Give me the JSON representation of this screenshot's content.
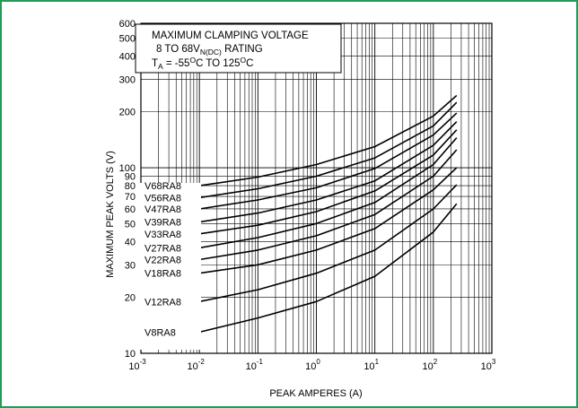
{
  "colors": {
    "frame": "#1f9d57",
    "lines": "#000000"
  },
  "chart_data": {
    "type": "line",
    "xscale": "log",
    "yscale": "log",
    "xlabel": "PEAK AMPERES (A)",
    "ylabel": "MAXIMUM PEAK VOLTS (V)",
    "xlim": [
      0.001,
      1000
    ],
    "ylim": [
      10,
      600
    ],
    "grid": true,
    "annotation": {
      "line1": "MAXIMUM CLAMPING VOLTAGE",
      "line2_prefix": "8 TO 68V",
      "line2_sub": "N(DC)",
      "line2_suffix": " RATING",
      "line3_T": "T",
      "line3_Tsub": "A",
      "line3_a": " = -55",
      "line3_o1": "O",
      "line3_b": "C TO 125",
      "line3_o2": "O",
      "line3_c": "C"
    },
    "x_ticks": [
      {
        "base": "10",
        "exp": "-3",
        "value": 0.001
      },
      {
        "base": "10",
        "exp": "-2",
        "value": 0.01
      },
      {
        "base": "10",
        "exp": "-1",
        "value": 0.1
      },
      {
        "base": "10",
        "exp": "0",
        "value": 1
      },
      {
        "base": "10",
        "exp": "1",
        "value": 10
      },
      {
        "base": "10",
        "exp": "2",
        "value": 100
      },
      {
        "base": "10",
        "exp": "3",
        "value": 1000
      }
    ],
    "y_ticks": [
      {
        "label": "10",
        "value": 10
      },
      {
        "label": "20",
        "value": 20
      },
      {
        "label": "30",
        "value": 30
      },
      {
        "label": "40",
        "value": 40
      },
      {
        "label": "50",
        "value": 50
      },
      {
        "label": "60",
        "value": 60
      },
      {
        "label": "70",
        "value": 70
      },
      {
        "label": "80",
        "value": 80
      },
      {
        "label": "90",
        "value": 90
      },
      {
        "label": "100",
        "value": 100
      },
      {
        "label": "200",
        "value": 200
      },
      {
        "label": "300",
        "value": 300
      },
      {
        "label": "400",
        "value": 400
      },
      {
        "label": "500",
        "value": 500
      },
      {
        "label": "600",
        "value": 600
      }
    ],
    "series": [
      {
        "name": "V68RA8",
        "x": [
          0.01,
          0.1,
          1,
          10,
          100,
          250
        ],
        "y": [
          80,
          89,
          104,
          130,
          190,
          245
        ]
      },
      {
        "name": "V56RA8",
        "x": [
          0.01,
          0.1,
          1,
          10,
          100,
          250
        ],
        "y": [
          69,
          77,
          90,
          113,
          168,
          225
        ]
      },
      {
        "name": "V47RA8",
        "x": [
          0.01,
          0.1,
          1,
          10,
          100,
          250
        ],
        "y": [
          60,
          67,
          78,
          99,
          150,
          197
        ]
      },
      {
        "name": "V39RA8",
        "x": [
          0.01,
          0.1,
          1,
          10,
          100,
          250
        ],
        "y": [
          51,
          57,
          67,
          85,
          132,
          177
        ]
      },
      {
        "name": "V33RA8",
        "x": [
          0.01,
          0.1,
          1,
          10,
          100,
          250
        ],
        "y": [
          44,
          49,
          58,
          75,
          117,
          160
        ]
      },
      {
        "name": "V27RA8",
        "x": [
          0.01,
          0.1,
          1,
          10,
          100,
          250
        ],
        "y": [
          37,
          42,
          50,
          65,
          104,
          145
        ]
      },
      {
        "name": "V22RA8",
        "x": [
          0.01,
          0.1,
          1,
          10,
          100,
          250
        ],
        "y": [
          32,
          36,
          43,
          56,
          90,
          125
        ]
      },
      {
        "name": "V18RA8",
        "x": [
          0.01,
          0.1,
          1,
          10,
          100,
          250
        ],
        "y": [
          27,
          30,
          36,
          47,
          76,
          100
        ]
      },
      {
        "name": "V12RA8",
        "x": [
          0.01,
          0.1,
          1,
          10,
          100,
          250
        ],
        "y": [
          19,
          22,
          27,
          36,
          60,
          81
        ]
      },
      {
        "name": "V8RA8",
        "x": [
          0.01,
          0.1,
          1,
          10,
          100,
          250
        ],
        "y": [
          13,
          15.5,
          19,
          26,
          45,
          64
        ]
      }
    ]
  }
}
